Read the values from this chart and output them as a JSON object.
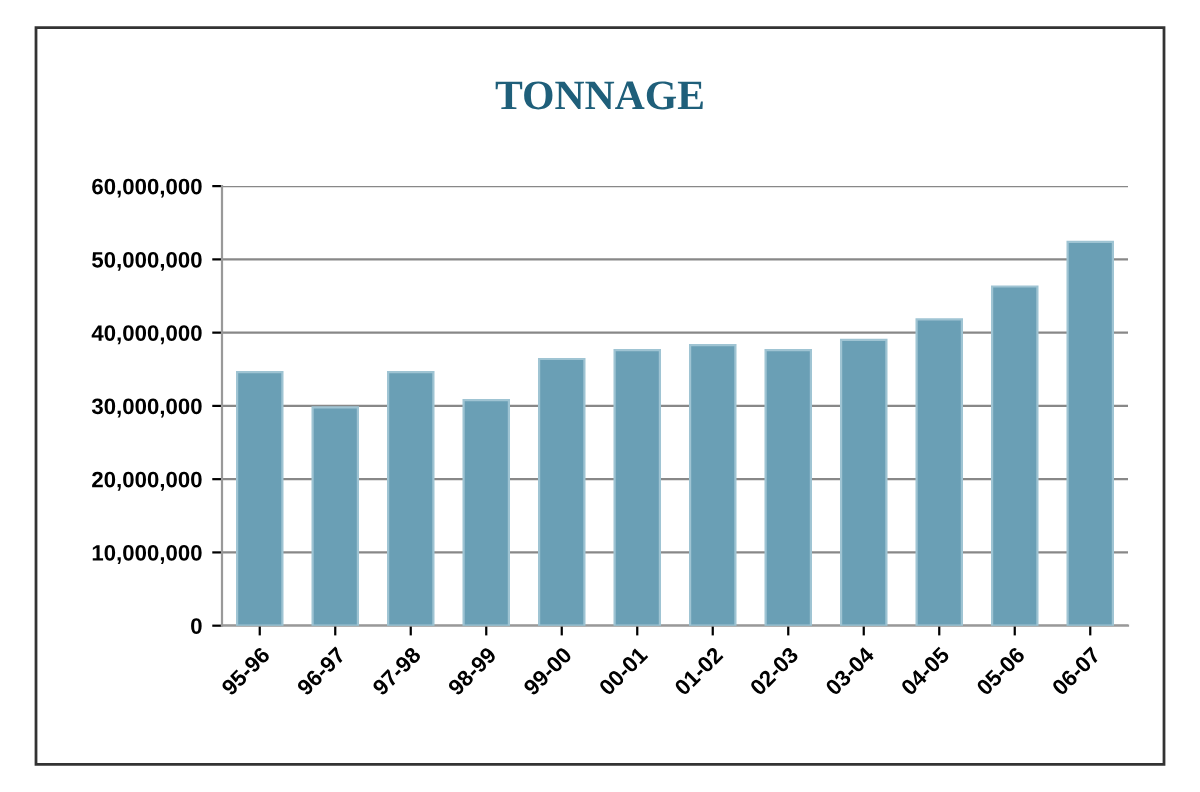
{
  "chart_data": {
    "type": "bar",
    "title": "TONNAGE",
    "categories": [
      "95-96",
      "96-97",
      "97-98",
      "98-99",
      "99-00",
      "00-01",
      "01-02",
      "02-03",
      "03-04",
      "04-05",
      "05-06",
      "06-07"
    ],
    "values": [
      34600000,
      29800000,
      34600000,
      30800000,
      36400000,
      37600000,
      38300000,
      37600000,
      39000000,
      41800000,
      46300000,
      52400000
    ],
    "color": "#6a9fb5",
    "ylim": [
      0,
      60000000
    ],
    "yticks": [
      {
        "value": 0,
        "label": "0"
      },
      {
        "value": 10000000,
        "label": "10,000,000"
      },
      {
        "value": 20000000,
        "label": "20,000,000"
      },
      {
        "value": 30000000,
        "label": "30,000,000"
      },
      {
        "value": 40000000,
        "label": "40,000,000"
      },
      {
        "value": 50000000,
        "label": "50,000,000"
      },
      {
        "value": 60000000,
        "label": "60,000,000"
      }
    ],
    "grid": "y"
  }
}
